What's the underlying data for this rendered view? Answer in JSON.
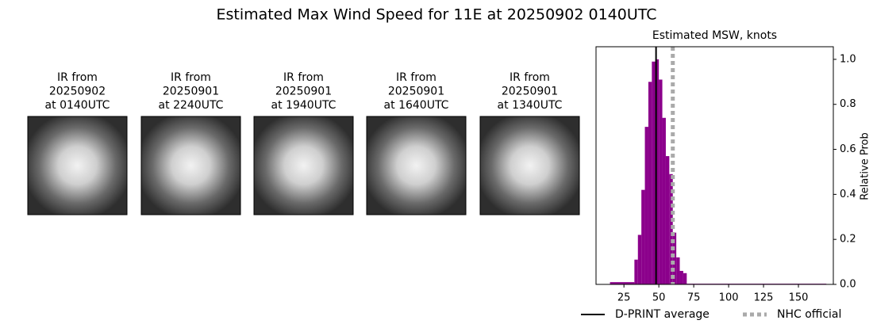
{
  "title": "Estimated Max Wind Speed for 11E at 20250902 0140UTC",
  "images": [
    {
      "label": [
        "IR from",
        "20250902",
        "at 0140UTC"
      ]
    },
    {
      "label": [
        "IR from",
        "20250901",
        "at 2240UTC"
      ]
    },
    {
      "label": [
        "IR from",
        "20250901",
        "at 1940UTC"
      ]
    },
    {
      "label": [
        "IR from",
        "20250901",
        "at 1640UTC"
      ]
    },
    {
      "label": [
        "IR from",
        "20250901",
        "at 1340UTC"
      ]
    }
  ],
  "chart_data": {
    "type": "histogram",
    "title": "Estimated MSW, knots",
    "ylabel": "Relative Prob",
    "bins": [
      15,
      32.5,
      35,
      37.5,
      40,
      42.5,
      45,
      47.5,
      50,
      52.5,
      55,
      57.5,
      60,
      62.5,
      65,
      67.5,
      70,
      170
    ],
    "values": [
      0.01,
      0.11,
      0.22,
      0.42,
      0.7,
      0.9,
      0.99,
      1.0,
      0.91,
      0.74,
      0.57,
      0.49,
      0.23,
      0.12,
      0.06,
      0.05,
      0.003
    ],
    "color": "#8b008b",
    "lines": [
      {
        "name": "D-PRINT average",
        "value": 48,
        "color": "#000000",
        "style": "solid"
      },
      {
        "name": "NHC official",
        "value": 60,
        "color": "#aaaaaa",
        "style": "dotted"
      }
    ],
    "xlim": [
      5,
      175
    ],
    "xticks": [
      25,
      50,
      75,
      100,
      125,
      150
    ],
    "ylim": [
      0,
      1.056
    ],
    "yticks": [
      {
        "value": 0,
        "label": "0.0"
      },
      0.2,
      0.4,
      0.6,
      0.8,
      {
        "value": 1,
        "label": "1.0"
      }
    ],
    "yaxis_side": "right"
  }
}
